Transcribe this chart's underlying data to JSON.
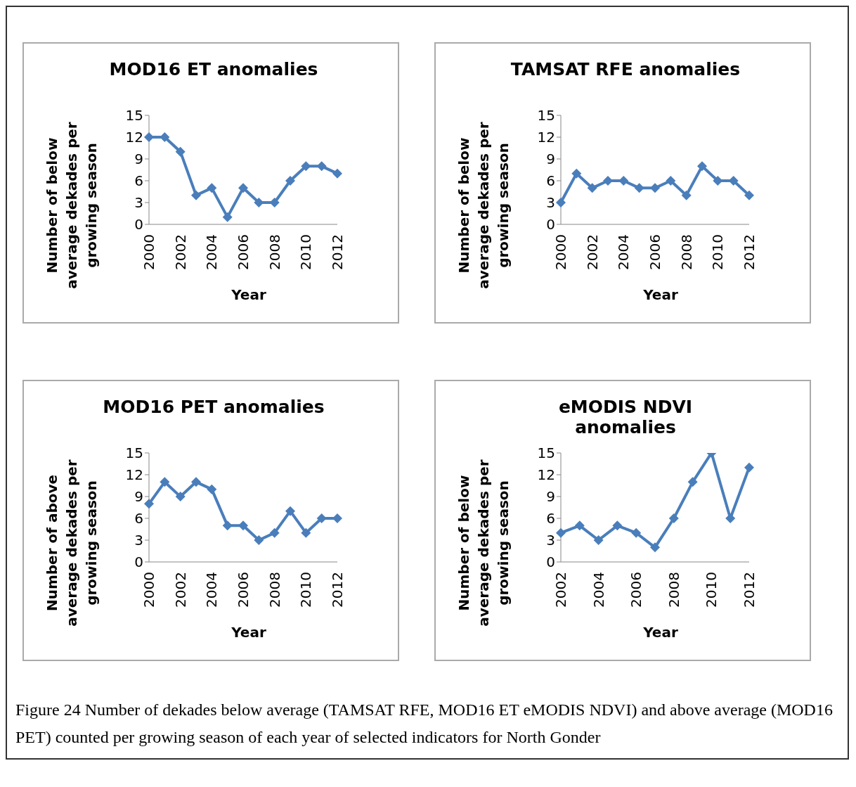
{
  "chart_data": [
    {
      "type": "line",
      "title": "MOD16 ET anomalies",
      "xlabel": "Year",
      "ylabel": "Number of below average dekades per growing season",
      "categories": [
        "2000",
        null,
        "2002",
        null,
        "2004",
        null,
        "2006",
        null,
        "2008",
        null,
        "2010",
        null,
        "2012"
      ],
      "series": [
        {
          "color": "#4a7ebb",
          "values": [
            12,
            12,
            10,
            4,
            5,
            1,
            5,
            3,
            3,
            6,
            8,
            8,
            7
          ]
        }
      ],
      "ylim": [
        0,
        15
      ],
      "yticks": [
        0,
        3,
        6,
        9,
        12,
        15
      ],
      "marker": "diamond",
      "line_style": "solid"
    },
    {
      "type": "line",
      "title": "TAMSAT RFE anomalies",
      "xlabel": "Year",
      "ylabel": "Number of below average dekades per growing season",
      "categories": [
        "2000",
        null,
        "2002",
        null,
        "2004",
        null,
        "2006",
        null,
        "2008",
        null,
        "2010",
        null,
        "2012"
      ],
      "series": [
        {
          "color": "#4a7ebb",
          "values": [
            3,
            7,
            5,
            6,
            6,
            5,
            5,
            6,
            4,
            8,
            6,
            6,
            4
          ]
        }
      ],
      "ylim": [
        0,
        15
      ],
      "yticks": [
        0,
        3,
        6,
        9,
        12,
        15
      ],
      "marker": "diamond",
      "line_style": "solid"
    },
    {
      "type": "line",
      "title": "MOD16 PET anomalies",
      "xlabel": "Year",
      "ylabel": "Number of above average dekades per growing season",
      "categories": [
        "2000",
        null,
        "2002",
        null,
        "2004",
        null,
        "2006",
        null,
        "2008",
        null,
        "2010",
        null,
        "2012"
      ],
      "series": [
        {
          "color": "#4a7ebb",
          "values": [
            8,
            11,
            9,
            11,
            10,
            5,
            5,
            3,
            4,
            7,
            4,
            6,
            6
          ]
        }
      ],
      "ylim": [
        0,
        15
      ],
      "yticks": [
        0,
        3,
        6,
        9,
        12,
        15
      ],
      "marker": "diamond",
      "line_style": "solid"
    },
    {
      "type": "line",
      "title": "eMODIS NDVI anomalies",
      "xlabel": "Year",
      "ylabel": "Number of below average dekades per growing season",
      "categories": [
        "2002",
        null,
        "2004",
        null,
        "2006",
        null,
        "2008",
        null,
        "2010",
        null,
        "2012"
      ],
      "series": [
        {
          "color": "#4a7ebb",
          "values": [
            4,
            5,
            3,
            5,
            4,
            2,
            6,
            11,
            15,
            6,
            13
          ]
        }
      ],
      "ylim": [
        0,
        15
      ],
      "yticks": [
        0,
        3,
        6,
        9,
        12,
        15
      ],
      "marker": "diamond",
      "line_style": "solid",
      "annotations": [
        "Figure 24 Number of dekades below average (TAMSAT RFE, MOD16 ET eMODIS NDVI) and above average (MOD16 PET) counted per growing season of each year of selected indicators for North Gonder"
      ]
    }
  ]
}
